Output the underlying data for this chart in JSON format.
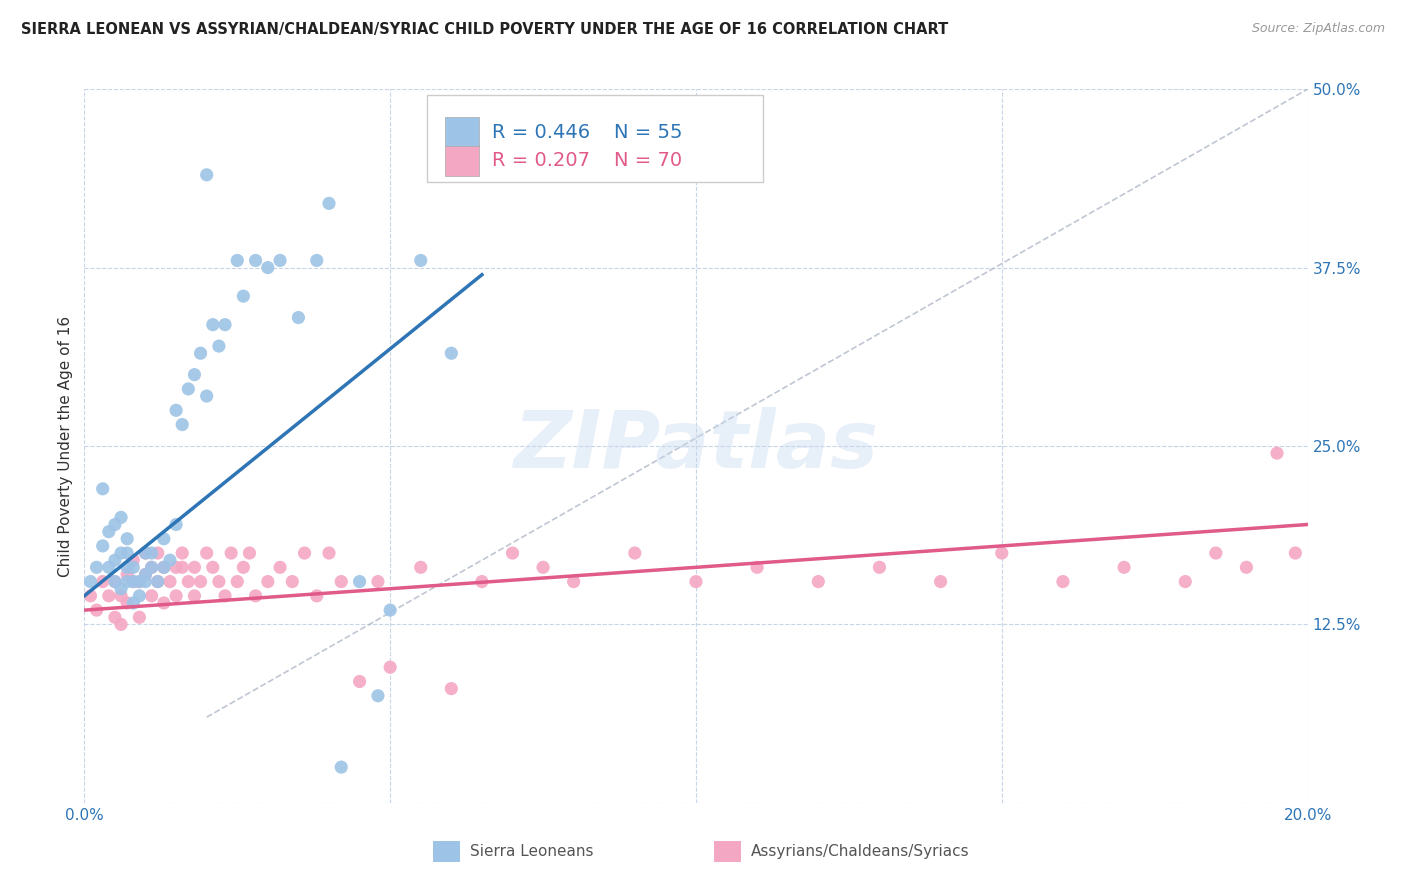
{
  "title": "SIERRA LEONEAN VS ASSYRIAN/CHALDEAN/SYRIAC CHILD POVERTY UNDER THE AGE OF 16 CORRELATION CHART",
  "source": "Source: ZipAtlas.com",
  "ylabel": "Child Poverty Under the Age of 16",
  "xlim": [
    0.0,
    0.2
  ],
  "ylim": [
    0.0,
    0.5
  ],
  "xticks": [
    0.0,
    0.05,
    0.1,
    0.15,
    0.2
  ],
  "yticks": [
    0.0,
    0.125,
    0.25,
    0.375,
    0.5
  ],
  "xticklabels": [
    "0.0%",
    "",
    "",
    "",
    "20.0%"
  ],
  "yticklabels": [
    "",
    "12.5%",
    "25.0%",
    "37.5%",
    "50.0%"
  ],
  "blue_color": "#9dc3e6",
  "pink_color": "#f4a7c3",
  "blue_line_color": "#2e75b6",
  "pink_line_color": "#e05a8a",
  "blue_label": "Sierra Leoneans",
  "pink_label": "Assyrians/Chaldeans/Syriacs",
  "blue_R": 0.446,
  "blue_N": 55,
  "pink_R": 0.207,
  "pink_N": 70,
  "watermark": "ZIPatlas",
  "background_color": "#ffffff",
  "grid_color": "#c8d4e8",
  "blue_scatter_x": [
    0.001,
    0.002,
    0.003,
    0.003,
    0.004,
    0.004,
    0.005,
    0.005,
    0.005,
    0.006,
    0.006,
    0.006,
    0.007,
    0.007,
    0.007,
    0.007,
    0.008,
    0.008,
    0.008,
    0.009,
    0.009,
    0.01,
    0.01,
    0.01,
    0.011,
    0.011,
    0.012,
    0.013,
    0.013,
    0.014,
    0.015,
    0.015,
    0.016,
    0.017,
    0.018,
    0.019,
    0.02,
    0.021,
    0.022,
    0.023,
    0.025,
    0.026,
    0.028,
    0.03,
    0.032,
    0.035,
    0.038,
    0.04,
    0.042,
    0.045,
    0.048,
    0.05,
    0.055,
    0.06,
    0.02
  ],
  "blue_scatter_y": [
    0.155,
    0.165,
    0.18,
    0.22,
    0.165,
    0.19,
    0.155,
    0.17,
    0.195,
    0.15,
    0.175,
    0.2,
    0.155,
    0.165,
    0.175,
    0.185,
    0.14,
    0.155,
    0.165,
    0.145,
    0.155,
    0.155,
    0.16,
    0.175,
    0.165,
    0.175,
    0.155,
    0.165,
    0.185,
    0.17,
    0.195,
    0.275,
    0.265,
    0.29,
    0.3,
    0.315,
    0.285,
    0.335,
    0.32,
    0.335,
    0.38,
    0.355,
    0.38,
    0.375,
    0.38,
    0.34,
    0.38,
    0.42,
    0.025,
    0.155,
    0.075,
    0.135,
    0.38,
    0.315,
    0.44
  ],
  "pink_scatter_x": [
    0.001,
    0.002,
    0.003,
    0.004,
    0.005,
    0.005,
    0.006,
    0.006,
    0.007,
    0.007,
    0.008,
    0.008,
    0.009,
    0.009,
    0.01,
    0.01,
    0.011,
    0.011,
    0.012,
    0.012,
    0.013,
    0.013,
    0.014,
    0.015,
    0.015,
    0.016,
    0.016,
    0.017,
    0.018,
    0.018,
    0.019,
    0.02,
    0.021,
    0.022,
    0.023,
    0.024,
    0.025,
    0.026,
    0.027,
    0.028,
    0.03,
    0.032,
    0.034,
    0.036,
    0.038,
    0.04,
    0.042,
    0.045,
    0.048,
    0.05,
    0.055,
    0.06,
    0.065,
    0.07,
    0.075,
    0.08,
    0.09,
    0.1,
    0.11,
    0.12,
    0.13,
    0.14,
    0.15,
    0.16,
    0.17,
    0.18,
    0.185,
    0.19,
    0.195,
    0.198
  ],
  "pink_scatter_y": [
    0.145,
    0.135,
    0.155,
    0.145,
    0.13,
    0.155,
    0.125,
    0.145,
    0.14,
    0.16,
    0.155,
    0.17,
    0.13,
    0.155,
    0.16,
    0.175,
    0.145,
    0.165,
    0.155,
    0.175,
    0.14,
    0.165,
    0.155,
    0.145,
    0.165,
    0.165,
    0.175,
    0.155,
    0.145,
    0.165,
    0.155,
    0.175,
    0.165,
    0.155,
    0.145,
    0.175,
    0.155,
    0.165,
    0.175,
    0.145,
    0.155,
    0.165,
    0.155,
    0.175,
    0.145,
    0.175,
    0.155,
    0.085,
    0.155,
    0.095,
    0.165,
    0.08,
    0.155,
    0.175,
    0.165,
    0.155,
    0.175,
    0.155,
    0.165,
    0.155,
    0.165,
    0.155,
    0.175,
    0.155,
    0.165,
    0.155,
    0.175,
    0.165,
    0.245,
    0.175
  ]
}
